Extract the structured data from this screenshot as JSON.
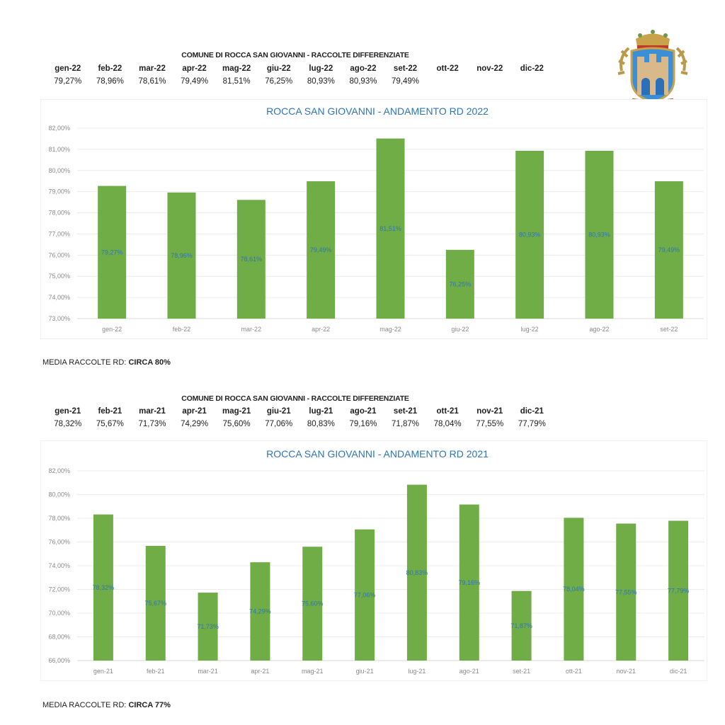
{
  "tables": [
    {
      "title": "COMUNE DI ROCCA SAN GIOVANNI - RACCOLTE DIFFERENZIATE",
      "months": [
        "gen-22",
        "feb-22",
        "mar-22",
        "apr-22",
        "mag-22",
        "giu-22",
        "lug-22",
        "ago-22",
        "set-22",
        "ott-22",
        "nov-22",
        "dic-22"
      ],
      "values": [
        "79,27%",
        "78,96%",
        "78,61%",
        "79,49%",
        "81,51%",
        "76,25%",
        "80,93%",
        "80,93%",
        "79,49%",
        "",
        "",
        ""
      ]
    },
    {
      "title": "COMUNE DI ROCCA SAN GIOVANNI - RACCOLTE DIFFERENZIATE",
      "months": [
        "gen-21",
        "feb-21",
        "mar-21",
        "apr-21",
        "mag-21",
        "giu-21",
        "lug-21",
        "ago-21",
        "set-21",
        "ott-21",
        "nov-21",
        "dic-21"
      ],
      "values": [
        "78,32%",
        "75,67%",
        "71,73%",
        "74,29%",
        "75,60%",
        "77,06%",
        "80,83%",
        "79,16%",
        "71,87%",
        "78,04%",
        "77,55%",
        "77,79%"
      ]
    }
  ],
  "media": [
    {
      "label": "MEDIA RACCOLTE RD: ",
      "value": "CIRCA 80%"
    },
    {
      "label": "MEDIA RACCOLTE RD: ",
      "value": "CIRCA 77%"
    }
  ],
  "emblem": {
    "type": "municipal-coat-of-arms"
  },
  "colors": {
    "bar": "#70ad47",
    "title": "#2e75b6",
    "data_label": "#2e75b6",
    "axis_text": "#8a8a8a",
    "grid": "#ececec"
  },
  "chart_data": [
    {
      "type": "bar",
      "title": "ROCCA SAN GIOVANNI - ANDAMENTO RD 2022",
      "categories": [
        "gen-22",
        "feb-22",
        "mar-22",
        "apr-22",
        "mag-22",
        "giu-22",
        "lug-22",
        "ago-22",
        "set-22"
      ],
      "values": [
        79.27,
        78.96,
        78.61,
        79.49,
        81.51,
        76.25,
        80.93,
        80.93,
        79.49
      ],
      "data_labels": [
        "79,27%",
        "78,96%",
        "78,61%",
        "79,49%",
        "81,51%",
        "76,25%",
        "80,93%",
        "80,93%",
        "79,49%"
      ],
      "ylim": [
        73,
        82
      ],
      "yticks": [
        "73,00%",
        "74,00%",
        "75,00%",
        "76,00%",
        "77,00%",
        "78,00%",
        "79,00%",
        "80,00%",
        "81,00%",
        "82,00%"
      ],
      "ytick_values": [
        73,
        74,
        75,
        76,
        77,
        78,
        79,
        80,
        81,
        82
      ],
      "grid": true,
      "legend": "none"
    },
    {
      "type": "bar",
      "title": "ROCCA SAN GIOVANNI - ANDAMENTO RD 2021",
      "categories": [
        "gen-21",
        "feb-21",
        "mar-21",
        "apr-21",
        "mag-21",
        "giu-21",
        "lug-21",
        "ago-21",
        "set-21",
        "ott-21",
        "nov-21",
        "dic-21"
      ],
      "values": [
        78.32,
        75.67,
        71.73,
        74.29,
        75.6,
        77.06,
        80.83,
        79.16,
        71.87,
        78.04,
        77.55,
        77.79
      ],
      "data_labels": [
        "78,32%",
        "75,67%",
        "71,73%",
        "74,29%",
        "75,60%",
        "77,06%",
        "80,83%",
        "79,16%",
        "71,87%",
        "78,04%",
        "77,55%",
        "77,79%"
      ],
      "ylim": [
        66,
        82
      ],
      "yticks": [
        "66,00%",
        "68,00%",
        "70,00%",
        "72,00%",
        "74,00%",
        "76,00%",
        "78,00%",
        "80,00%",
        "82,00%"
      ],
      "ytick_values": [
        66,
        68,
        70,
        72,
        74,
        76,
        78,
        80,
        82
      ],
      "grid": true,
      "legend": "none"
    }
  ]
}
